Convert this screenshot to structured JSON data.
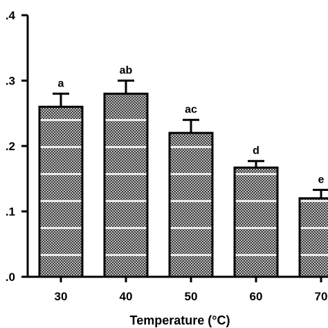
{
  "chart_data": {
    "type": "bar",
    "xlabel": "Temperature (°C)",
    "ylabel": "",
    "categories": [
      "30",
      "40",
      "50",
      "60",
      "70"
    ],
    "values": [
      0.26,
      0.28,
      0.22,
      0.167,
      0.12
    ],
    "errors": [
      0.02,
      0.02,
      0.02,
      0.01,
      0.013
    ],
    "significance_labels": [
      "a",
      "ab",
      "ac",
      "d",
      "e"
    ],
    "ylim": [
      0,
      0.4
    ],
    "yticks": [
      0.0,
      0.1,
      0.2,
      0.3,
      0.4
    ],
    "ytick_labels": [
      ".0",
      ".1",
      ".2",
      ".3",
      ".4"
    ],
    "grid": false,
    "bar_pattern": "checkered-gray-with-white-stripes",
    "colors": {
      "bar_dark": "#3c3c3c",
      "bar_light": "#bcbcbc",
      "stripe": "#ffffff",
      "axis": "#000000"
    }
  }
}
